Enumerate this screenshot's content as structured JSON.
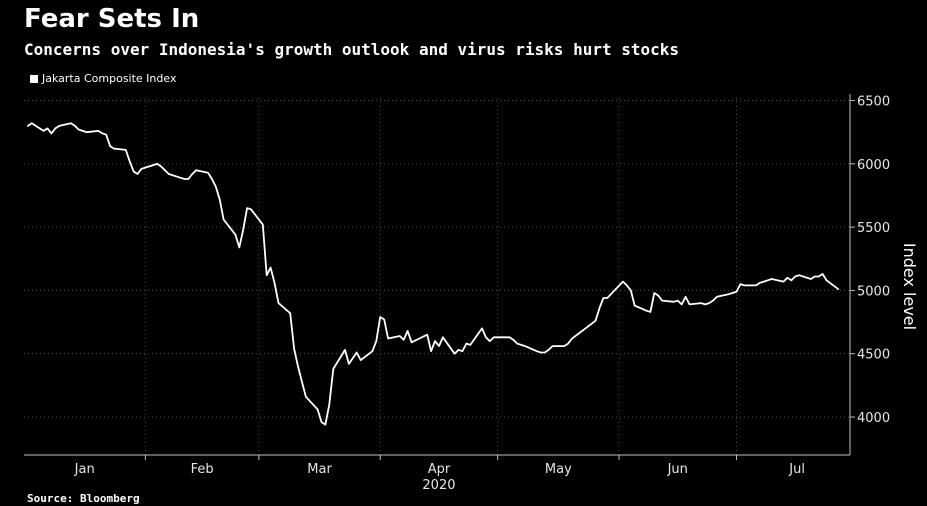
{
  "header": {
    "title": "Fear Sets In",
    "subtitle": "Concerns over Indonesia's growth outlook and virus risks hurt stocks"
  },
  "legend": {
    "label": "Jakarta Composite Index"
  },
  "footer": {
    "source": "Source: Bloomberg"
  },
  "colors": {
    "background": "#000000",
    "line": "#ffffff",
    "grid": "#4a4a4a",
    "axis": "#bfbfbf"
  },
  "chart_data": {
    "type": "line",
    "title": "Fear Sets In",
    "subtitle": "Concerns over Indonesia's growth outlook and virus risks hurt stocks",
    "xlabel": "2020",
    "ylabel": "Index level",
    "ylim": [
      3700,
      6520
    ],
    "y_ticks": [
      4000,
      4500,
      5000,
      5500,
      6000,
      6500
    ],
    "y_tick_labels": [
      "4000",
      "4500",
      "5000",
      "5500",
      "6000",
      "6500"
    ],
    "x_ticks": [
      "Jan",
      "Feb",
      "Mar",
      "Apr",
      "May",
      "Jun",
      "Jul"
    ],
    "x_year_label": "2020",
    "grid": true,
    "grid_style": "dotted",
    "legend_position": "top-left",
    "series": [
      {
        "name": "Jakarta Composite Index",
        "x": [
          "2020-01-02",
          "2020-01-03",
          "2020-01-06",
          "2020-01-07",
          "2020-01-08",
          "2020-01-09",
          "2020-01-10",
          "2020-01-13",
          "2020-01-14",
          "2020-01-15",
          "2020-01-16",
          "2020-01-17",
          "2020-01-20",
          "2020-01-21",
          "2020-01-22",
          "2020-01-23",
          "2020-01-24",
          "2020-01-27",
          "2020-01-28",
          "2020-01-29",
          "2020-01-30",
          "2020-01-31",
          "2020-02-03",
          "2020-02-04",
          "2020-02-05",
          "2020-02-06",
          "2020-02-07",
          "2020-02-10",
          "2020-02-11",
          "2020-02-12",
          "2020-02-13",
          "2020-02-14",
          "2020-02-17",
          "2020-02-18",
          "2020-02-19",
          "2020-02-20",
          "2020-02-21",
          "2020-02-24",
          "2020-02-25",
          "2020-02-26",
          "2020-02-27",
          "2020-02-28",
          "2020-03-02",
          "2020-03-03",
          "2020-03-04",
          "2020-03-05",
          "2020-03-06",
          "2020-03-09",
          "2020-03-10",
          "2020-03-11",
          "2020-03-12",
          "2020-03-13",
          "2020-03-16",
          "2020-03-17",
          "2020-03-18",
          "2020-03-19",
          "2020-03-20",
          "2020-03-23",
          "2020-03-24",
          "2020-03-26",
          "2020-03-27",
          "2020-03-30",
          "2020-03-31",
          "2020-04-01",
          "2020-04-02",
          "2020-04-03",
          "2020-04-06",
          "2020-04-07",
          "2020-04-08",
          "2020-04-09",
          "2020-04-13",
          "2020-04-14",
          "2020-04-15",
          "2020-04-16",
          "2020-04-17",
          "2020-04-20",
          "2020-04-21",
          "2020-04-22",
          "2020-04-23",
          "2020-04-24",
          "2020-04-27",
          "2020-04-28",
          "2020-04-29",
          "2020-04-30",
          "2020-05-04",
          "2020-05-05",
          "2020-05-06",
          "2020-05-08",
          "2020-05-11",
          "2020-05-12",
          "2020-05-13",
          "2020-05-14",
          "2020-05-15",
          "2020-05-18",
          "2020-05-19",
          "2020-05-20",
          "2020-05-26",
          "2020-05-27",
          "2020-05-28",
          "2020-05-29",
          "2020-06-02",
          "2020-06-03",
          "2020-06-04",
          "2020-06-05",
          "2020-06-08",
          "2020-06-09",
          "2020-06-10",
          "2020-06-11",
          "2020-06-12",
          "2020-06-15",
          "2020-06-16",
          "2020-06-17",
          "2020-06-18",
          "2020-06-19",
          "2020-06-22",
          "2020-06-23",
          "2020-06-24",
          "2020-06-25",
          "2020-06-26",
          "2020-06-29",
          "2020-06-30",
          "2020-07-01",
          "2020-07-02",
          "2020-07-03",
          "2020-07-06",
          "2020-07-07",
          "2020-07-08",
          "2020-07-09",
          "2020-07-10",
          "2020-07-13",
          "2020-07-14",
          "2020-07-15",
          "2020-07-16",
          "2020-07-17",
          "2020-07-20",
          "2020-07-21",
          "2020-07-22",
          "2020-07-23",
          "2020-07-24",
          "2020-07-27"
        ],
        "values": [
          6300,
          6320,
          6260,
          6280,
          6240,
          6280,
          6300,
          6320,
          6300,
          6270,
          6260,
          6250,
          6260,
          6240,
          6230,
          6140,
          6120,
          6110,
          6020,
          5940,
          5920,
          5960,
          5990,
          6000,
          5980,
          5950,
          5920,
          5890,
          5880,
          5880,
          5920,
          5950,
          5930,
          5880,
          5820,
          5720,
          5560,
          5440,
          5340,
          5480,
          5650,
          5640,
          5520,
          5120,
          5180,
          5060,
          4900,
          4820,
          4540,
          4400,
          4280,
          4160,
          4060,
          3960,
          3940,
          4100,
          4380,
          4530,
          4420,
          4510,
          4450,
          4520,
          4600,
          4790,
          4770,
          4620,
          4640,
          4610,
          4680,
          4590,
          4650,
          4520,
          4600,
          4560,
          4630,
          4500,
          4530,
          4520,
          4580,
          4570,
          4700,
          4630,
          4600,
          4630,
          4630,
          4610,
          4580,
          4560,
          4520,
          4510,
          4510,
          4530,
          4560,
          4560,
          4580,
          4620,
          4760,
          4860,
          4940,
          4940,
          5070,
          5040,
          5000,
          4880,
          4840,
          4830,
          4980,
          4960,
          4920,
          4910,
          4920,
          4890,
          4950,
          4890,
          4900,
          4890,
          4900,
          4920,
          4950,
          4970,
          4980,
          4990,
          5050,
          5040,
          5040,
          5060,
          5070,
          5080,
          5090,
          5070,
          5100,
          5080,
          5110,
          5120,
          5090,
          5110,
          5110,
          5130,
          5080,
          5010
        ]
      }
    ]
  }
}
